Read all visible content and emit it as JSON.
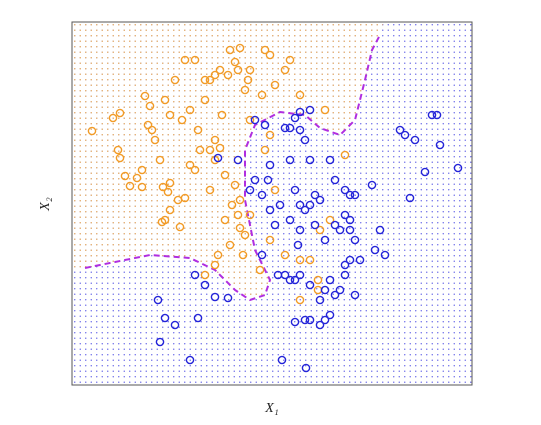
{
  "chart_data": {
    "type": "scatter",
    "xlabel": "X₁",
    "ylabel": "X₂",
    "xlim": [
      0,
      400
    ],
    "ylim": [
      0,
      363
    ],
    "series": [
      {
        "color": "#f29b26",
        "x": [
          20,
          41,
          48,
          46,
          48,
          53,
          58,
          65,
          70,
          70,
          73,
          78,
          76,
          80,
          83,
          88,
          91,
          96,
          98,
          93,
          90,
          98,
          106,
          108,
          113,
          118,
          123,
          128,
          126,
          133,
          138,
          143,
          148,
          150,
          143,
          138,
          143,
          148,
          153,
          158,
          163,
          166,
          168,
          173,
          178,
          163,
          168,
          166,
          168,
          173,
          171,
          158,
          153,
          146,
          143,
          133,
          123,
          113,
          103,
          93,
          98,
          110,
          118,
          133,
          178,
          193,
          198,
          203,
          190,
          213,
          218,
          228,
          198,
          193,
          203,
          198,
          188,
          213,
          228,
          228,
          238,
          248,
          258,
          273,
          253,
          246,
          246,
          176,
          156,
          138,
          160,
          178
        ],
        "y": [
          254,
          267,
          272,
          235,
          227,
          209,
          199,
          207,
          215,
          198,
          289,
          279,
          260,
          255,
          245,
          225,
          198,
          193,
          202,
          165,
          163,
          175,
          185,
          158,
          187,
          220,
          215,
          235,
          255,
          305,
          305,
          310,
          315,
          270,
          245,
          235,
          225,
          237,
          210,
          335,
          323,
          315,
          337,
          295,
          265,
          200,
          185,
          170,
          157,
          150,
          130,
          140,
          165,
          130,
          120,
          110,
          325,
          325,
          305,
          285,
          270,
          265,
          275,
          285,
          315,
          335,
          330,
          300,
          290,
          315,
          325,
          290,
          250,
          235,
          195,
          145,
          115,
          130,
          125,
          85,
          125,
          155,
          165,
          230,
          275,
          105,
          95,
          305,
          310,
          195,
          180,
          170
        ]
      },
      {
        "color": "#2323d8",
        "x": [
          86,
          93,
          103,
          88,
          118,
          126,
          133,
          123,
          143,
          183,
          193,
          213,
          218,
          223,
          228,
          238,
          228,
          233,
          238,
          218,
          198,
          196,
          190,
          198,
          208,
          203,
          218,
          223,
          228,
          233,
          238,
          243,
          248,
          228,
          243,
          253,
          263,
          268,
          273,
          278,
          283,
          278,
          273,
          268,
          258,
          253,
          248,
          238,
          228,
          223,
          218,
          213,
          238,
          233,
          223,
          248,
          253,
          258,
          263,
          283,
          273,
          288,
          303,
          313,
          308,
          300,
          278,
          263,
          258,
          273,
          283,
          328,
          333,
          343,
          360,
          365,
          368,
          353,
          338,
          386,
          178,
          210,
          234,
          156,
          146,
          166,
          183,
          190,
          206,
          226,
          278
        ],
        "y": [
          85,
          67,
          60,
          43,
          25,
          67,
          100,
          110,
          88,
          265,
          260,
          257,
          257,
          267,
          273,
          275,
          255,
          245,
          225,
          225,
          220,
          205,
          190,
          175,
          180,
          160,
          165,
          195,
          180,
          175,
          180,
          190,
          185,
          155,
          160,
          145,
          160,
          155,
          170,
          155,
          145,
          125,
          120,
          95,
          105,
          95,
          85,
          100,
          110,
          105,
          105,
          110,
          65,
          65,
          63,
          60,
          65,
          70,
          90,
          90,
          110,
          125,
          135,
          130,
          155,
          200,
          190,
          205,
          225,
          195,
          190,
          255,
          250,
          245,
          270,
          270,
          240,
          213,
          187,
          217,
          195,
          25,
          17,
          87,
          227,
          225,
          205,
          130,
          110,
          140,
          165
        ]
      }
    ],
    "boundary": {
      "color": "#b02ee0",
      "x": [
        13,
        78,
        118,
        143,
        163,
        178,
        193,
        198,
        183,
        173,
        173,
        183,
        208,
        233,
        248,
        268,
        283,
        293,
        300,
        308
      ],
      "y": [
        117,
        130,
        127,
        115,
        95,
        85,
        90,
        105,
        135,
        185,
        235,
        260,
        273,
        270,
        257,
        250,
        265,
        305,
        335,
        350
      ]
    }
  }
}
